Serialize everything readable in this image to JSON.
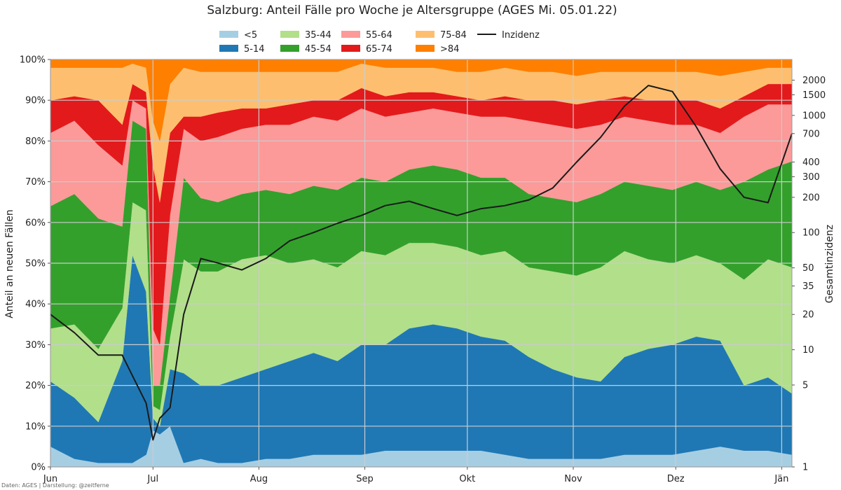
{
  "chart_data": {
    "type": "area",
    "title": "Salzburg: Anteil Fälle pro Woche je Altersgruppe (AGES Mi. 05.01.22)",
    "ylabel": "Anteil an neuen Fällen",
    "y2label": "Gesamtinzidenz",
    "credit": "Daten: AGES | Darstellung: @zeitferne",
    "stacked": true,
    "normalized_percent": true,
    "ylim": [
      0,
      100
    ],
    "y2_scale": "log",
    "y2lim": [
      1,
      3000
    ],
    "grid": true,
    "legend_position": "top-center",
    "x_ticks": [
      {
        "label": "Jun",
        "day": 0
      },
      {
        "label": "Jul",
        "day": 30
      },
      {
        "label": "Aug",
        "day": 61
      },
      {
        "label": "Sep",
        "day": 92
      },
      {
        "label": "Okt",
        "day": 122
      },
      {
        "label": "Nov",
        "day": 153
      },
      {
        "label": "Dez",
        "day": 183
      },
      {
        "label": "Jän",
        "day": 214
      }
    ],
    "x_end_day": 217,
    "y_ticks": [
      "0%",
      "10%",
      "20%",
      "30%",
      "40%",
      "50%",
      "60%",
      "70%",
      "80%",
      "90%",
      "100%"
    ],
    "y2_ticks": [
      1,
      5,
      10,
      20,
      35,
      50,
      100,
      200,
      300,
      400,
      700,
      1000,
      1500,
      2000
    ],
    "sample_days": [
      0,
      7,
      14,
      21,
      24,
      28,
      30,
      32,
      35,
      39,
      44,
      49,
      56,
      63,
      70,
      77,
      84,
      91,
      98,
      105,
      112,
      119,
      126,
      133,
      140,
      147,
      154,
      161,
      168,
      175,
      182,
      189,
      196,
      203,
      210,
      217
    ],
    "series": [
      {
        "name": "<5",
        "color": "#a6cee3",
        "values": [
          5,
          2,
          1,
          1,
          1,
          3,
          9,
          8,
          10,
          1,
          2,
          1,
          1,
          2,
          2,
          3,
          3,
          3,
          4,
          4,
          4,
          4,
          4,
          3,
          2,
          2,
          2,
          2,
          3,
          3,
          3,
          4,
          5,
          4,
          4,
          3
        ]
      },
      {
        "name": "5-14",
        "color": "#1f78b4",
        "values": [
          16,
          15,
          10,
          25,
          51,
          40,
          3,
          2,
          14,
          22,
          18,
          19,
          21,
          22,
          24,
          25,
          23,
          27,
          26,
          30,
          31,
          30,
          28,
          28,
          25,
          22,
          20,
          19,
          24,
          26,
          27,
          28,
          26,
          16,
          18,
          15
        ]
      },
      {
        "name": "35-44",
        "color": "#b2df8a",
        "values": [
          13,
          18,
          18,
          13,
          13,
          20,
          3,
          4,
          8,
          28,
          28,
          28,
          29,
          28,
          24,
          23,
          23,
          23,
          22,
          21,
          20,
          20,
          20,
          22,
          22,
          24,
          25,
          28,
          26,
          22,
          20,
          20,
          19,
          26,
          29,
          31
        ]
      },
      {
        "name": "45-54",
        "color": "#33a02c",
        "values": [
          30,
          32,
          32,
          20,
          20,
          20,
          5,
          6,
          10,
          20,
          18,
          17,
          16,
          16,
          17,
          18,
          19,
          18,
          18,
          18,
          19,
          19,
          19,
          18,
          18,
          18,
          18,
          18,
          17,
          18,
          18,
          18,
          18,
          24,
          22,
          26
        ]
      },
      {
        "name": "55-64",
        "color": "#fb9a99",
        "values": [
          18,
          18,
          18,
          15,
          5,
          5,
          14,
          10,
          20,
          12,
          14,
          16,
          16,
          16,
          17,
          17,
          17,
          17,
          16,
          14,
          14,
          14,
          15,
          15,
          18,
          18,
          18,
          17,
          16,
          16,
          16,
          14,
          14,
          16,
          16,
          14
        ]
      },
      {
        "name": "65-74",
        "color": "#e31a1c",
        "values": [
          8,
          6,
          11,
          10,
          4,
          4,
          40,
          35,
          20,
          3,
          6,
          6,
          5,
          4,
          5,
          4,
          5,
          5,
          5,
          5,
          4,
          4,
          4,
          5,
          5,
          6,
          6,
          6,
          5,
          5,
          6,
          6,
          6,
          5,
          5,
          5
        ]
      },
      {
        "name": "75-84",
        "color": "#fdbf6f",
        "values": [
          8,
          7,
          8,
          14,
          5,
          6,
          11,
          15,
          12,
          12,
          11,
          10,
          9,
          9,
          8,
          7,
          7,
          6,
          7,
          6,
          6,
          6,
          7,
          7,
          7,
          7,
          7,
          7,
          6,
          7,
          7,
          7,
          8,
          6,
          4,
          4
        ]
      },
      {
        "name": ">84",
        "color": "#ff7f00",
        "values": [
          2,
          2,
          2,
          2,
          1,
          2,
          15,
          20,
          6,
          2,
          3,
          3,
          3,
          3,
          3,
          3,
          3,
          1,
          2,
          2,
          2,
          3,
          3,
          2,
          3,
          3,
          4,
          3,
          3,
          3,
          3,
          3,
          4,
          3,
          2,
          2
        ]
      },
      {
        "name": "Inzidenz",
        "color": "#1a1a1a",
        "axis": "y2",
        "values": [
          20,
          14,
          9,
          9,
          6,
          3.5,
          1.7,
          2.6,
          3.2,
          20,
          60,
          55,
          48,
          60,
          85,
          100,
          120,
          140,
          170,
          185,
          160,
          140,
          160,
          170,
          190,
          240,
          400,
          650,
          1200,
          1800,
          1600,
          800,
          350,
          200,
          180,
          700
        ]
      }
    ]
  }
}
